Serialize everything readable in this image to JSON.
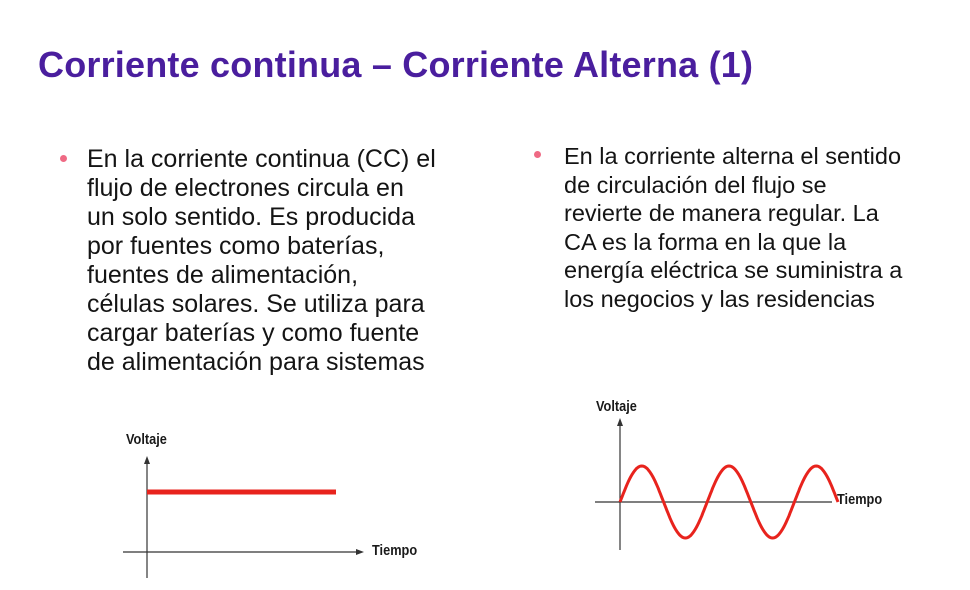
{
  "slide": {
    "title": "Corriente continua – Corriente Alterna (1)"
  },
  "bullets": {
    "left": "En la corriente continua (CC) el\nflujo de electrones circula en\nun solo sentido. Es producida\npor fuentes como baterías,\nfuentes de alimentación,\ncélulas solares. Se utiliza para\ncargar baterías y como fuente\nde alimentación para sistemas",
    "right": "En la corriente alterna el sentido\nde circulación del flujo se\nrevierte de manera regular. La\nCA es la forma en la que la\nenergía eléctrica se suministra a\nlos negocios y las residencias"
  },
  "graphs": {
    "dc": {
      "ylabel": "Voltaje",
      "xlabel": "Tiempo",
      "line_color": "#e8231d",
      "axis_color": "#333333"
    },
    "ac": {
      "ylabel": "Voltaje",
      "xlabel": "Tiempo",
      "line_color": "#e8231d",
      "axis_color": "#333333",
      "cycles": 2.5
    }
  },
  "colors": {
    "title": "#4a1e9e",
    "bullet_dot": "#ef6a84",
    "text": "#141414"
  }
}
